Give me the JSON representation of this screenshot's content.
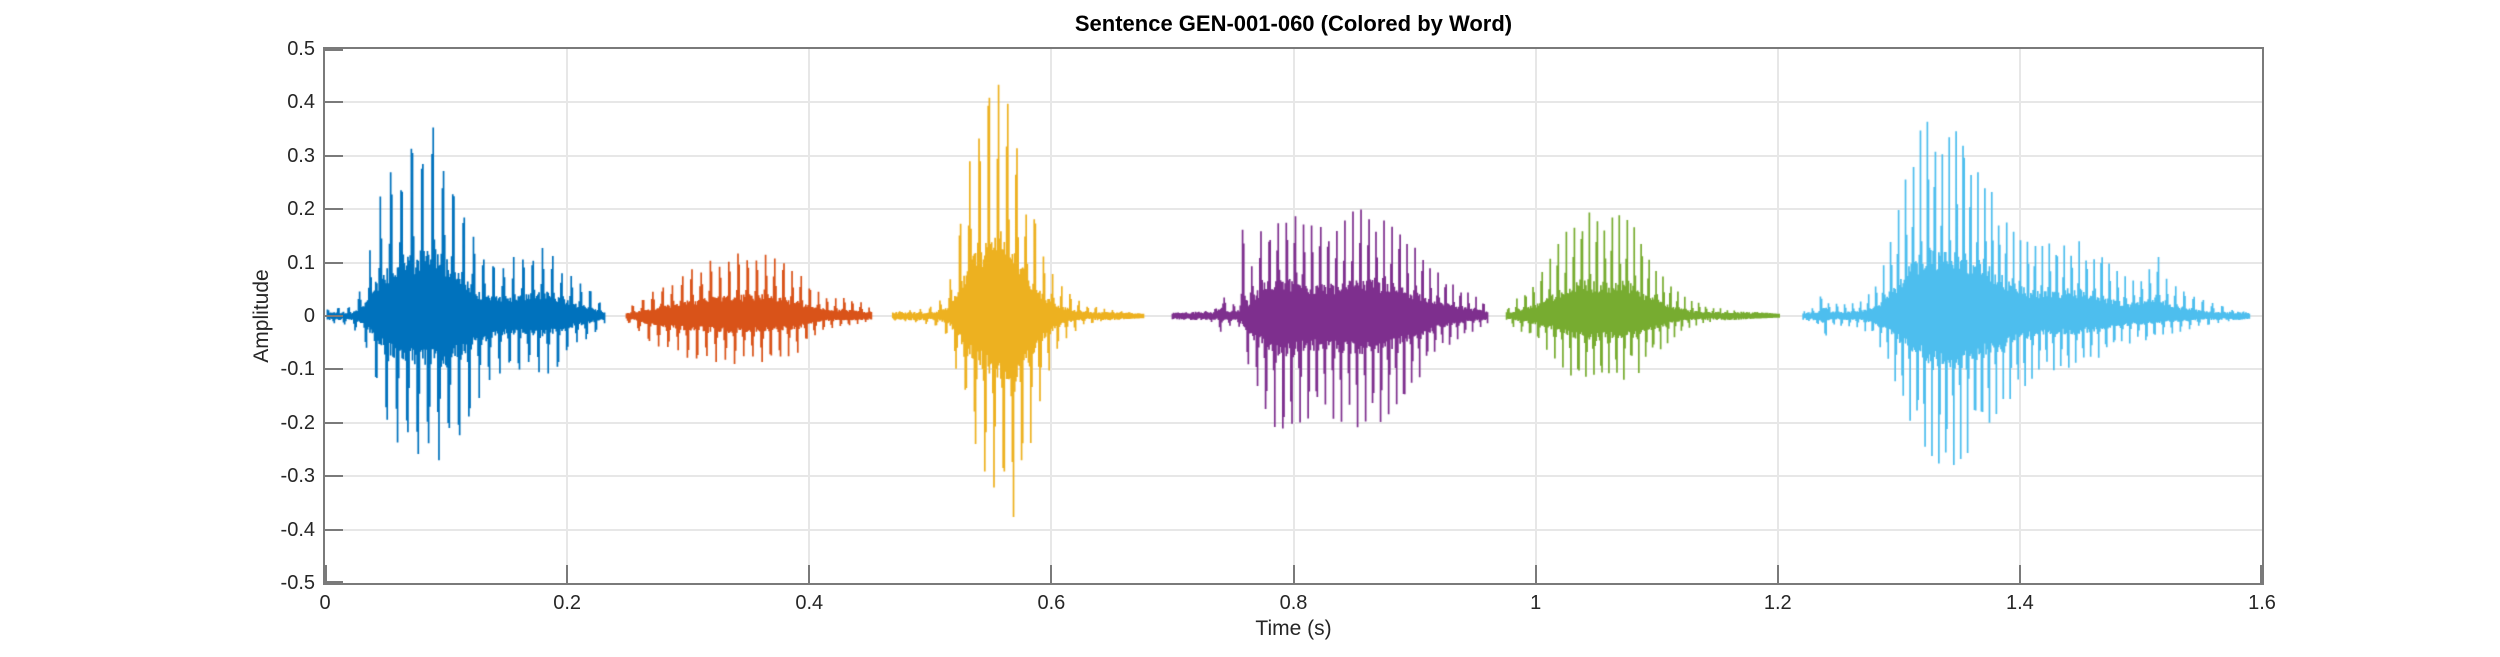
{
  "page": {
    "background": "#ffffff"
  },
  "chart_data": {
    "type": "line",
    "subtype": "audio-waveform-colored-by-word",
    "title": "Sentence GEN-001-060 (Colored by Word)",
    "xlabel": "Time (s)",
    "ylabel": "Amplitude",
    "xlim": [
      0,
      1.6
    ],
    "ylim": [
      -0.5,
      0.5
    ],
    "grid": true,
    "legend": "none",
    "xticks": [
      {
        "v": 0,
        "label": "0"
      },
      {
        "v": 0.2,
        "label": "0.2"
      },
      {
        "v": 0.4,
        "label": "0.4"
      },
      {
        "v": 0.6,
        "label": "0.6"
      },
      {
        "v": 0.8,
        "label": "0.8"
      },
      {
        "v": 1,
        "label": "1"
      },
      {
        "v": 1.2,
        "label": "1.2"
      },
      {
        "v": 1.4,
        "label": "1.4"
      },
      {
        "v": 1.6,
        "label": "1.6"
      }
    ],
    "yticks": [
      {
        "v": -0.5,
        "label": "-0.5"
      },
      {
        "v": -0.4,
        "label": "-0.4"
      },
      {
        "v": -0.3,
        "label": "-0.3"
      },
      {
        "v": -0.2,
        "label": "-0.2"
      },
      {
        "v": -0.1,
        "label": "-0.1"
      },
      {
        "v": 0,
        "label": "0"
      },
      {
        "v": 0.1,
        "label": "0.1"
      },
      {
        "v": 0.2,
        "label": "0.2"
      },
      {
        "v": 0.3,
        "label": "0.3"
      },
      {
        "v": 0.4,
        "label": "0.4"
      },
      {
        "v": 0.5,
        "label": "0.5"
      }
    ],
    "colors": {
      "axis": "#7a7a7a",
      "grid": "#e7e7e7",
      "tick_label": "#262626",
      "title": "#000000"
    },
    "segments": [
      {
        "word_index": 1,
        "color": "#0072BD",
        "t_start": 0.002,
        "t_end": 0.231,
        "f0_hz": 120,
        "seed": 11,
        "peak": 0.38,
        "trough": -0.27,
        "envelope": [
          [
            0.002,
            0.012,
            0.012
          ],
          [
            0.022,
            0.018,
            0.018
          ],
          [
            0.032,
            0.06,
            0.05
          ],
          [
            0.045,
            0.22,
            0.16
          ],
          [
            0.06,
            0.3,
            0.24
          ],
          [
            0.075,
            0.34,
            0.26
          ],
          [
            0.088,
            0.38,
            0.27
          ],
          [
            0.1,
            0.32,
            0.27
          ],
          [
            0.112,
            0.24,
            0.22
          ],
          [
            0.125,
            0.14,
            0.16
          ],
          [
            0.14,
            0.11,
            0.12
          ],
          [
            0.155,
            0.11,
            0.1
          ],
          [
            0.17,
            0.12,
            0.1
          ],
          [
            0.183,
            0.13,
            0.11
          ],
          [
            0.195,
            0.1,
            0.09
          ],
          [
            0.205,
            0.07,
            0.06
          ],
          [
            0.218,
            0.05,
            0.04
          ],
          [
            0.231,
            0.02,
            0.015
          ]
        ]
      },
      {
        "word_index": 2,
        "color": "#D95319",
        "t_start": 0.249,
        "t_end": 0.452,
        "f0_hz": 125,
        "seed": 22,
        "peak": 0.12,
        "trough": -0.09,
        "envelope": [
          [
            0.249,
            0.015,
            0.012
          ],
          [
            0.262,
            0.035,
            0.04
          ],
          [
            0.275,
            0.05,
            0.06
          ],
          [
            0.29,
            0.07,
            0.075
          ],
          [
            0.305,
            0.09,
            0.08
          ],
          [
            0.32,
            0.105,
            0.085
          ],
          [
            0.335,
            0.115,
            0.09
          ],
          [
            0.35,
            0.12,
            0.09
          ],
          [
            0.365,
            0.115,
            0.085
          ],
          [
            0.378,
            0.1,
            0.08
          ],
          [
            0.39,
            0.085,
            0.07
          ],
          [
            0.4,
            0.055,
            0.045
          ],
          [
            0.412,
            0.04,
            0.03
          ],
          [
            0.425,
            0.035,
            0.02
          ],
          [
            0.44,
            0.03,
            0.015
          ],
          [
            0.452,
            0.012,
            0.008
          ]
        ]
      },
      {
        "word_index": 3,
        "color": "#EDB120",
        "t_start": 0.469,
        "t_end": 0.677,
        "f0_hz": 118,
        "seed": 33,
        "peak": 0.47,
        "trough": -0.39,
        "envelope": [
          [
            0.469,
            0.008,
            0.008
          ],
          [
            0.49,
            0.012,
            0.012
          ],
          [
            0.505,
            0.02,
            0.02
          ],
          [
            0.515,
            0.05,
            0.04
          ],
          [
            0.523,
            0.15,
            0.12
          ],
          [
            0.53,
            0.26,
            0.2
          ],
          [
            0.538,
            0.35,
            0.26
          ],
          [
            0.547,
            0.43,
            0.3
          ],
          [
            0.555,
            0.47,
            0.33
          ],
          [
            0.562,
            0.42,
            0.36
          ],
          [
            0.57,
            0.33,
            0.39
          ],
          [
            0.578,
            0.25,
            0.3
          ],
          [
            0.586,
            0.18,
            0.2
          ],
          [
            0.594,
            0.11,
            0.13
          ],
          [
            0.603,
            0.07,
            0.07
          ],
          [
            0.613,
            0.045,
            0.04
          ],
          [
            0.625,
            0.025,
            0.02
          ],
          [
            0.64,
            0.015,
            0.012
          ],
          [
            0.66,
            0.008,
            0.006
          ],
          [
            0.677,
            0.004,
            0.004
          ]
        ]
      },
      {
        "word_index": 4,
        "color": "#7E2F8E",
        "t_start": 0.7,
        "t_end": 0.961,
        "f0_hz": 120,
        "seed": 44,
        "peak": 0.205,
        "trough": -0.215,
        "envelope": [
          [
            0.7,
            0.006,
            0.006
          ],
          [
            0.72,
            0.008,
            0.008
          ],
          [
            0.735,
            0.012,
            0.012
          ],
          [
            0.74,
            0.055,
            0.03
          ],
          [
            0.747,
            0.02,
            0.018
          ],
          [
            0.7555,
            0.035,
            0.02
          ],
          [
            0.7585,
            0.19,
            0.05
          ],
          [
            0.7625,
            0.06,
            0.09
          ],
          [
            0.768,
            0.12,
            0.14
          ],
          [
            0.776,
            0.18,
            0.17
          ],
          [
            0.785,
            0.205,
            0.21
          ],
          [
            0.795,
            0.2,
            0.215
          ],
          [
            0.805,
            0.185,
            0.2
          ],
          [
            0.818,
            0.165,
            0.185
          ],
          [
            0.83,
            0.17,
            0.19
          ],
          [
            0.842,
            0.19,
            0.2
          ],
          [
            0.855,
            0.2,
            0.21
          ],
          [
            0.868,
            0.19,
            0.205
          ],
          [
            0.88,
            0.17,
            0.185
          ],
          [
            0.893,
            0.145,
            0.15
          ],
          [
            0.906,
            0.115,
            0.11
          ],
          [
            0.92,
            0.08,
            0.07
          ],
          [
            0.934,
            0.055,
            0.045
          ],
          [
            0.948,
            0.04,
            0.03
          ],
          [
            0.961,
            0.025,
            0.015
          ]
        ]
      },
      {
        "word_index": 5,
        "color": "#77AC30",
        "t_start": 0.976,
        "t_end": 1.202,
        "f0_hz": 122,
        "seed": 55,
        "peak": 0.2,
        "trough": -0.135,
        "envelope": [
          [
            0.976,
            0.015,
            0.012
          ],
          [
            0.988,
            0.04,
            0.03
          ],
          [
            0.998,
            0.06,
            0.045
          ],
          [
            1.008,
            0.09,
            0.06
          ],
          [
            1.02,
            0.14,
            0.09
          ],
          [
            1.032,
            0.18,
            0.12
          ],
          [
            1.042,
            0.2,
            0.13
          ],
          [
            1.052,
            0.175,
            0.135
          ],
          [
            1.062,
            0.185,
            0.125
          ],
          [
            1.072,
            0.19,
            0.12
          ],
          [
            1.082,
            0.165,
            0.115
          ],
          [
            1.092,
            0.12,
            0.09
          ],
          [
            1.102,
            0.085,
            0.065
          ],
          [
            1.112,
            0.055,
            0.045
          ],
          [
            1.124,
            0.035,
            0.025
          ],
          [
            1.14,
            0.02,
            0.012
          ],
          [
            1.16,
            0.012,
            0.008
          ],
          [
            1.18,
            0.008,
            0.005
          ],
          [
            1.202,
            0.004,
            0.003
          ]
        ]
      },
      {
        "word_index": 6,
        "color": "#4DBEEE",
        "t_start": 1.221,
        "t_end": 1.59,
        "f0_hz": 115,
        "seed": 66,
        "peak": 0.37,
        "trough": -0.29,
        "envelope": [
          [
            1.221,
            0.008,
            0.008
          ],
          [
            1.233,
            0.02,
            0.015
          ],
          [
            1.238,
            0.065,
            0.05
          ],
          [
            1.243,
            0.025,
            0.02
          ],
          [
            1.255,
            0.022,
            0.018
          ],
          [
            1.268,
            0.03,
            0.022
          ],
          [
            1.28,
            0.05,
            0.04
          ],
          [
            1.29,
            0.11,
            0.08
          ],
          [
            1.3,
            0.2,
            0.14
          ],
          [
            1.31,
            0.3,
            0.2
          ],
          [
            1.32,
            0.36,
            0.24
          ],
          [
            1.33,
            0.37,
            0.27
          ],
          [
            1.34,
            0.34,
            0.29
          ],
          [
            1.35,
            0.35,
            0.27
          ],
          [
            1.36,
            0.33,
            0.25
          ],
          [
            1.372,
            0.29,
            0.22
          ],
          [
            1.383,
            0.23,
            0.18
          ],
          [
            1.394,
            0.18,
            0.15
          ],
          [
            1.405,
            0.15,
            0.13
          ],
          [
            1.417,
            0.13,
            0.11
          ],
          [
            1.43,
            0.14,
            0.1
          ],
          [
            1.443,
            0.15,
            0.1
          ],
          [
            1.455,
            0.13,
            0.09
          ],
          [
            1.468,
            0.11,
            0.075
          ],
          [
            1.48,
            0.085,
            0.06
          ],
          [
            1.493,
            0.065,
            0.05
          ],
          [
            1.505,
            0.09,
            0.045
          ],
          [
            1.513,
            0.12,
            0.04
          ],
          [
            1.521,
            0.07,
            0.035
          ],
          [
            1.532,
            0.05,
            0.03
          ],
          [
            1.545,
            0.035,
            0.022
          ],
          [
            1.558,
            0.025,
            0.015
          ],
          [
            1.572,
            0.015,
            0.01
          ],
          [
            1.59,
            0.006,
            0.005
          ]
        ]
      }
    ]
  }
}
